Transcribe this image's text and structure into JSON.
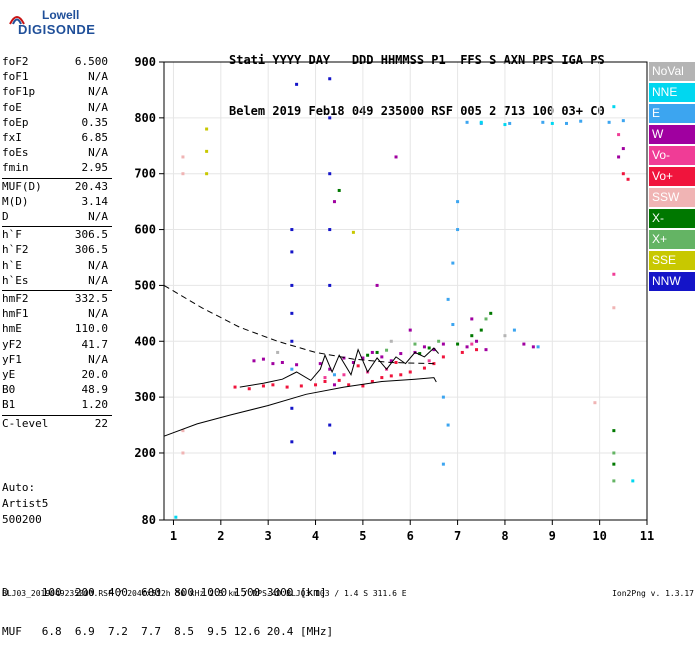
{
  "logo": {
    "line1": "Lowell",
    "line2": "DIGISONDE"
  },
  "header": {
    "line1": "Stati YYYY DAY   DDD HHMMSS P1  FFS S AXN PPS IGA PS",
    "line2": "Belem 2019 Feb18 049 235000 RSF 005 2 713 100 03+ C0"
  },
  "params": [
    {
      "label": "foF2",
      "value": "6.500"
    },
    {
      "label": "foF1",
      "value": "N/A"
    },
    {
      "label": "foF1p",
      "value": "N/A"
    },
    {
      "label": "foE",
      "value": "N/A"
    },
    {
      "label": "foEp",
      "value": "0.35"
    },
    {
      "label": "fxI",
      "value": "6.85"
    },
    {
      "label": "foEs",
      "value": "N/A"
    },
    {
      "label": "fmin",
      "value": "2.95"
    },
    {
      "label": "MUF(D)",
      "value": "20.43"
    },
    {
      "label": "M(D)",
      "value": "3.14"
    },
    {
      "label": "D",
      "value": "N/A"
    },
    {
      "label": "h`F",
      "value": "306.5"
    },
    {
      "label": "h`F2",
      "value": "306.5"
    },
    {
      "label": "h`E",
      "value": "N/A"
    },
    {
      "label": "h`Es",
      "value": "N/A"
    },
    {
      "label": "hmF2",
      "value": "332.5"
    },
    {
      "label": "hmF1",
      "value": "N/A"
    },
    {
      "label": "hmE",
      "value": "110.0"
    },
    {
      "label": "yF2",
      "value": "41.7"
    },
    {
      "label": "yF1",
      "value": "N/A"
    },
    {
      "label": "yE",
      "value": "20.0"
    },
    {
      "label": "B0",
      "value": "48.9"
    },
    {
      "label": "B1",
      "value": "1.20"
    },
    {
      "label": "C-level",
      "value": "22"
    }
  ],
  "auto": {
    "line1": "Auto:",
    "line2": "Artist5",
    "line3": "500200"
  },
  "legend": [
    {
      "name": "NoVal",
      "color": "#b4b4b4"
    },
    {
      "name": "NNE",
      "color": "#00d7f0"
    },
    {
      "name": "E",
      "color": "#3ca5f0"
    },
    {
      "name": "W",
      "color": "#a000a0"
    },
    {
      "name": "Vo-",
      "color": "#f03c96"
    },
    {
      "name": "Vo+",
      "color": "#f0143c"
    },
    {
      "name": "SSW",
      "color": "#f0b4b4"
    },
    {
      "name": "X-",
      "color": "#007800"
    },
    {
      "name": "X+",
      "color": "#64b464"
    },
    {
      "name": "SSE",
      "color": "#c8c800"
    },
    {
      "name": "NNW",
      "color": "#1414c8"
    }
  ],
  "bottom": {
    "dline": "D     100  200  400  600  800 1000 1500 3000 [km]",
    "mline": "MUF   6.8  6.9  7.2  7.7  8.5  9.5 12.6 20.4 [MHz]"
  },
  "footer": "BLJ03_2019049235000.RSF / 204fx512h 50 kHz 2.5 km / DPS-4D BLJ03 103 / 1.4 S 311.6 E",
  "version": "Ion2Png v. 1.3.17",
  "chart_data": {
    "type": "scatter",
    "x_ticks": [
      1,
      2,
      3,
      4,
      5,
      6,
      7,
      8,
      9,
      10,
      11
    ],
    "y_ticks": [
      80,
      200,
      300,
      400,
      500,
      600,
      700,
      800,
      900
    ],
    "xlim": [
      0.8,
      11
    ],
    "ylim": [
      80,
      900
    ],
    "grid": true,
    "legend_position": "right",
    "series": [
      {
        "name": "W",
        "color": "#a000a0",
        "points": [
          [
            2.7,
            365
          ],
          [
            2.9,
            368
          ],
          [
            3.1,
            360
          ],
          [
            3.3,
            362
          ],
          [
            3.6,
            358
          ],
          [
            4.1,
            360
          ],
          [
            4.3,
            350
          ],
          [
            4.4,
            322
          ],
          [
            4.6,
            370
          ],
          [
            4.8,
            362
          ],
          [
            5.0,
            370
          ],
          [
            5.2,
            380
          ],
          [
            5.4,
            372
          ],
          [
            5.6,
            365
          ],
          [
            5.8,
            378
          ],
          [
            6.1,
            380
          ],
          [
            6.3,
            390
          ],
          [
            6.5,
            385
          ],
          [
            6.7,
            395
          ],
          [
            7.2,
            390
          ],
          [
            7.4,
            400
          ],
          [
            7.6,
            385
          ],
          [
            8.4,
            395
          ],
          [
            8.6,
            390
          ],
          [
            10.4,
            730
          ],
          [
            10.5,
            745
          ],
          [
            4.4,
            650
          ],
          [
            5.3,
            500
          ],
          [
            5.7,
            730
          ],
          [
            6.0,
            420
          ],
          [
            7.3,
            440
          ]
        ]
      },
      {
        "name": "Vo+",
        "color": "#f0143c",
        "points": [
          [
            2.3,
            318
          ],
          [
            2.6,
            315
          ],
          [
            2.9,
            320
          ],
          [
            3.1,
            322
          ],
          [
            3.4,
            318
          ],
          [
            3.7,
            320
          ],
          [
            4.0,
            322
          ],
          [
            4.2,
            328
          ],
          [
            4.5,
            330
          ],
          [
            4.7,
            322
          ],
          [
            5.0,
            320
          ],
          [
            5.2,
            328
          ],
          [
            5.4,
            335
          ],
          [
            5.6,
            338
          ],
          [
            5.8,
            340
          ],
          [
            6.0,
            345
          ],
          [
            6.3,
            352
          ],
          [
            6.5,
            360
          ],
          [
            6.7,
            372
          ],
          [
            7.1,
            380
          ],
          [
            7.4,
            385
          ],
          [
            10.5,
            700
          ],
          [
            10.6,
            690
          ],
          [
            4.9,
            356
          ],
          [
            5.7,
            362
          ]
        ]
      },
      {
        "name": "Vo-",
        "color": "#f03c96",
        "points": [
          [
            4.2,
            335
          ],
          [
            4.6,
            340
          ],
          [
            5.1,
            345
          ],
          [
            5.5,
            350
          ],
          [
            6.4,
            365
          ],
          [
            7.3,
            395
          ],
          [
            10.4,
            770
          ],
          [
            10.3,
            520
          ]
        ]
      },
      {
        "name": "E",
        "color": "#3ca5f0",
        "points": [
          [
            7.0,
            650
          ],
          [
            7.0,
            600
          ],
          [
            6.9,
            540
          ],
          [
            6.8,
            475
          ],
          [
            6.9,
            430
          ],
          [
            7.2,
            792
          ],
          [
            7.5,
            790
          ],
          [
            8.1,
            790
          ],
          [
            8.8,
            792
          ],
          [
            9.3,
            790
          ],
          [
            9.6,
            794
          ],
          [
            10.2,
            792
          ],
          [
            10.5,
            795
          ],
          [
            6.7,
            300
          ],
          [
            6.8,
            250
          ],
          [
            6.7,
            180
          ],
          [
            8.2,
            420
          ],
          [
            8.7,
            390
          ],
          [
            3.5,
            350
          ],
          [
            4.4,
            340
          ]
        ]
      },
      {
        "name": "NNE",
        "color": "#00d7f0",
        "points": [
          [
            1.05,
            85
          ],
          [
            7.5,
            792
          ],
          [
            8.0,
            788
          ],
          [
            9.0,
            790
          ],
          [
            10.3,
            820
          ],
          [
            10.7,
            150
          ]
        ]
      },
      {
        "name": "X-",
        "color": "#007800",
        "points": [
          [
            5.1,
            375
          ],
          [
            5.3,
            380
          ],
          [
            6.2,
            378
          ],
          [
            6.4,
            388
          ],
          [
            7.0,
            395
          ],
          [
            7.3,
            410
          ],
          [
            7.5,
            420
          ],
          [
            7.7,
            450
          ],
          [
            10.3,
            240
          ],
          [
            10.3,
            180
          ],
          [
            4.5,
            670
          ]
        ]
      },
      {
        "name": "X+",
        "color": "#64b464",
        "points": [
          [
            5.5,
            384
          ],
          [
            6.1,
            395
          ],
          [
            6.6,
            400
          ],
          [
            7.6,
            440
          ],
          [
            10.3,
            200
          ],
          [
            10.3,
            150
          ]
        ]
      },
      {
        "name": "SSE",
        "color": "#c8c800",
        "points": [
          [
            1.7,
            780
          ],
          [
            1.7,
            740
          ],
          [
            1.7,
            700
          ],
          [
            4.8,
            595
          ]
        ]
      },
      {
        "name": "SSW",
        "color": "#f0b4b4",
        "points": [
          [
            1.2,
            730
          ],
          [
            1.2,
            700
          ],
          [
            1.2,
            240
          ],
          [
            1.2,
            200
          ],
          [
            10.3,
            460
          ],
          [
            9.9,
            290
          ]
        ]
      },
      {
        "name": "NNW",
        "color": "#1414c8",
        "points": [
          [
            3.5,
            600
          ],
          [
            3.5,
            560
          ],
          [
            3.5,
            500
          ],
          [
            3.5,
            450
          ],
          [
            3.5,
            400
          ],
          [
            3.5,
            280
          ],
          [
            3.5,
            220
          ],
          [
            4.3,
            870
          ],
          [
            4.3,
            800
          ],
          [
            4.3,
            700
          ],
          [
            4.3,
            600
          ],
          [
            4.3,
            500
          ],
          [
            4.3,
            250
          ],
          [
            3.6,
            860
          ],
          [
            4.4,
            200
          ]
        ]
      },
      {
        "name": "NoVal",
        "color": "#b4b4b4",
        "points": [
          [
            3.2,
            380
          ],
          [
            5.6,
            400
          ],
          [
            8.0,
            410
          ]
        ]
      }
    ],
    "traces": [
      {
        "name": "profile",
        "style": "solid",
        "points": [
          [
            0.8,
            230
          ],
          [
            1.5,
            252
          ],
          [
            2.2,
            268
          ],
          [
            3.0,
            285
          ],
          [
            3.8,
            305
          ],
          [
            4.6,
            318
          ],
          [
            5.4,
            328
          ],
          [
            6.1,
            332
          ],
          [
            6.5,
            335
          ],
          [
            6.55,
            327
          ]
        ]
      },
      {
        "name": "trace",
        "style": "solid",
        "points": [
          [
            2.4,
            318
          ],
          [
            2.9,
            325
          ],
          [
            3.3,
            332
          ],
          [
            3.6,
            345
          ],
          [
            3.9,
            330
          ],
          [
            4.1,
            350
          ],
          [
            4.2,
            375
          ],
          [
            4.35,
            345
          ],
          [
            4.5,
            375
          ],
          [
            4.75,
            340
          ],
          [
            4.9,
            385
          ],
          [
            5.1,
            345
          ],
          [
            5.3,
            370
          ],
          [
            5.5,
            350
          ],
          [
            5.7,
            372
          ],
          [
            5.9,
            360
          ],
          [
            6.1,
            380
          ],
          [
            6.3,
            372
          ],
          [
            6.5,
            388
          ],
          [
            6.6,
            378
          ]
        ]
      },
      {
        "name": "extrapolated",
        "style": "dashed",
        "points": [
          [
            0.8,
            500
          ],
          [
            1.6,
            460
          ],
          [
            2.4,
            425
          ],
          [
            3.2,
            400
          ],
          [
            4.0,
            380
          ],
          [
            4.8,
            368
          ],
          [
            5.6,
            362
          ],
          [
            6.5,
            360
          ]
        ]
      }
    ]
  }
}
